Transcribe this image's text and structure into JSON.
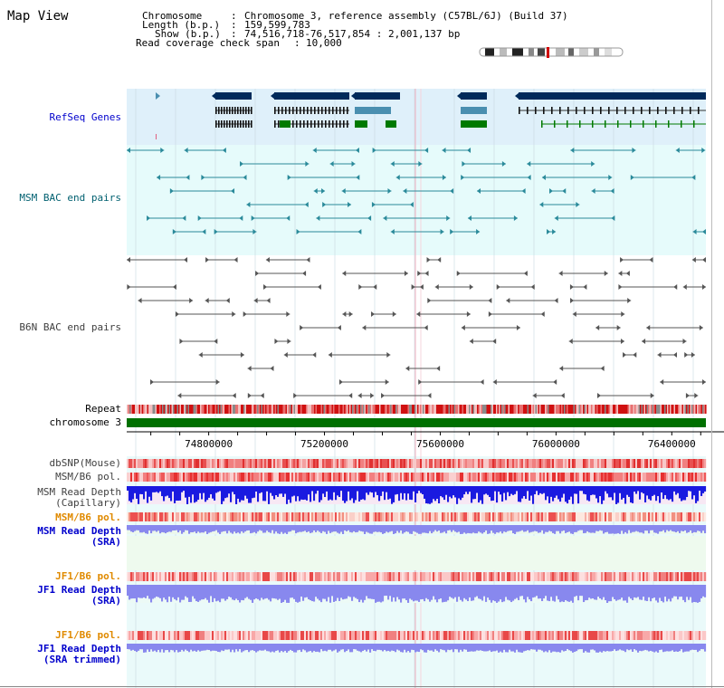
{
  "page": {
    "title": "Map View"
  },
  "info": {
    "chromosome_key": "Chromosome",
    "chromosome_val": "Chromosome 3, reference assembly (C57BL/6J) (Build 37)",
    "length_key": "Length (b.p.)",
    "length_val": "159,599,783",
    "show_key": "Show (b.p.)",
    "show_val": "74,516,718-76,517,854 : 2,001,137 bp",
    "coverage_key": "Read coverage check span",
    "coverage_val": "10,000"
  },
  "colors": {
    "refseq_bg": "#dff0fa",
    "bac_bg": "#e6fbfb",
    "gene_dark": "#002a5a",
    "gene_mid": "#4a8fb0",
    "gene_green": "#007a00",
    "msm_color": "#2a8a9a",
    "b6n_color": "#555555",
    "repeat_red": "#d01010",
    "chromosome_green": "#007000",
    "snp_red": "#e83030",
    "depth_blue": "#1a1ae0",
    "depth_light_blue": "#8888ee",
    "pol_orange": "#e08a00",
    "highlight_pink": "#f0b0c0"
  },
  "tracks": {
    "refseq": "RefSeq Genes",
    "msm_bac": "MSM BAC end pairs",
    "b6n_bac": "B6N BAC end pairs",
    "repeat": "Repeat",
    "chromosome": "chromosome 3",
    "dbsnp": "dbSNP(Mouse)",
    "msm_b6_pol": "MSM/B6 pol.",
    "msm_depth_cap_1": "MSM Read Depth",
    "msm_depth_cap_2": "(Capillary)",
    "msm_b6_pol2": "MSM/B6 pol.",
    "msm_depth_sra_1": "MSM Read Depth",
    "msm_depth_sra_2": "(SRA)",
    "jf1_b6_pol": "JF1/B6 pol.",
    "jf1_depth_sra_1": "JF1 Read Depth",
    "jf1_depth_sra_2": "(SRA)",
    "jf1_b6_pol2": "JF1/B6 pol.",
    "jf1_depth_trim_1": "JF1 Read Depth",
    "jf1_depth_trim_2": "(SRA trimmed)"
  },
  "axis": {
    "ticks": [
      {
        "label": "74800000",
        "pos": 74800000
      },
      {
        "label": "75200000",
        "pos": 75200000
      },
      {
        "label": "75600000",
        "pos": 75600000
      },
      {
        "label": "76000000",
        "pos": 76000000
      },
      {
        "label": "76400000",
        "pos": 76400000
      }
    ],
    "range_start": 74516718,
    "range_end": 76517854
  }
}
